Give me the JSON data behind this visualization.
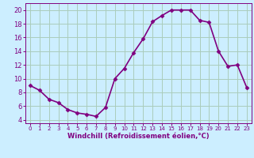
{
  "x": [
    0,
    1,
    2,
    3,
    4,
    5,
    6,
    7,
    8,
    9,
    10,
    11,
    12,
    13,
    14,
    15,
    16,
    17,
    18,
    19,
    20,
    21,
    22,
    23
  ],
  "y": [
    9,
    8.3,
    7,
    6.5,
    5.5,
    5,
    4.8,
    4.5,
    5.8,
    10,
    11.5,
    13.8,
    15.8,
    18.3,
    19.2,
    20.0,
    20.0,
    20.0,
    18.5,
    18.2,
    14.0,
    11.8,
    12.0,
    8.7
  ],
  "line_color": "#800080",
  "marker": "D",
  "marker_size": 2.5,
  "bg_color": "#cceeff",
  "grid_color": "#aaccbb",
  "xlabel": "Windchill (Refroidissement éolien,°C)",
  "xlim": [
    -0.5,
    23.5
  ],
  "ylim": [
    3.5,
    21.0
  ],
  "yticks": [
    4,
    6,
    8,
    10,
    12,
    14,
    16,
    18,
    20
  ],
  "xticks": [
    0,
    1,
    2,
    3,
    4,
    5,
    6,
    7,
    8,
    9,
    10,
    11,
    12,
    13,
    14,
    15,
    16,
    17,
    18,
    19,
    20,
    21,
    22,
    23
  ],
  "tick_color": "#800080",
  "label_color": "#800080",
  "linewidth": 1.2,
  "xlabel_fontsize": 6.0,
  "tick_fontsize_x": 5.0,
  "tick_fontsize_y": 6.0
}
